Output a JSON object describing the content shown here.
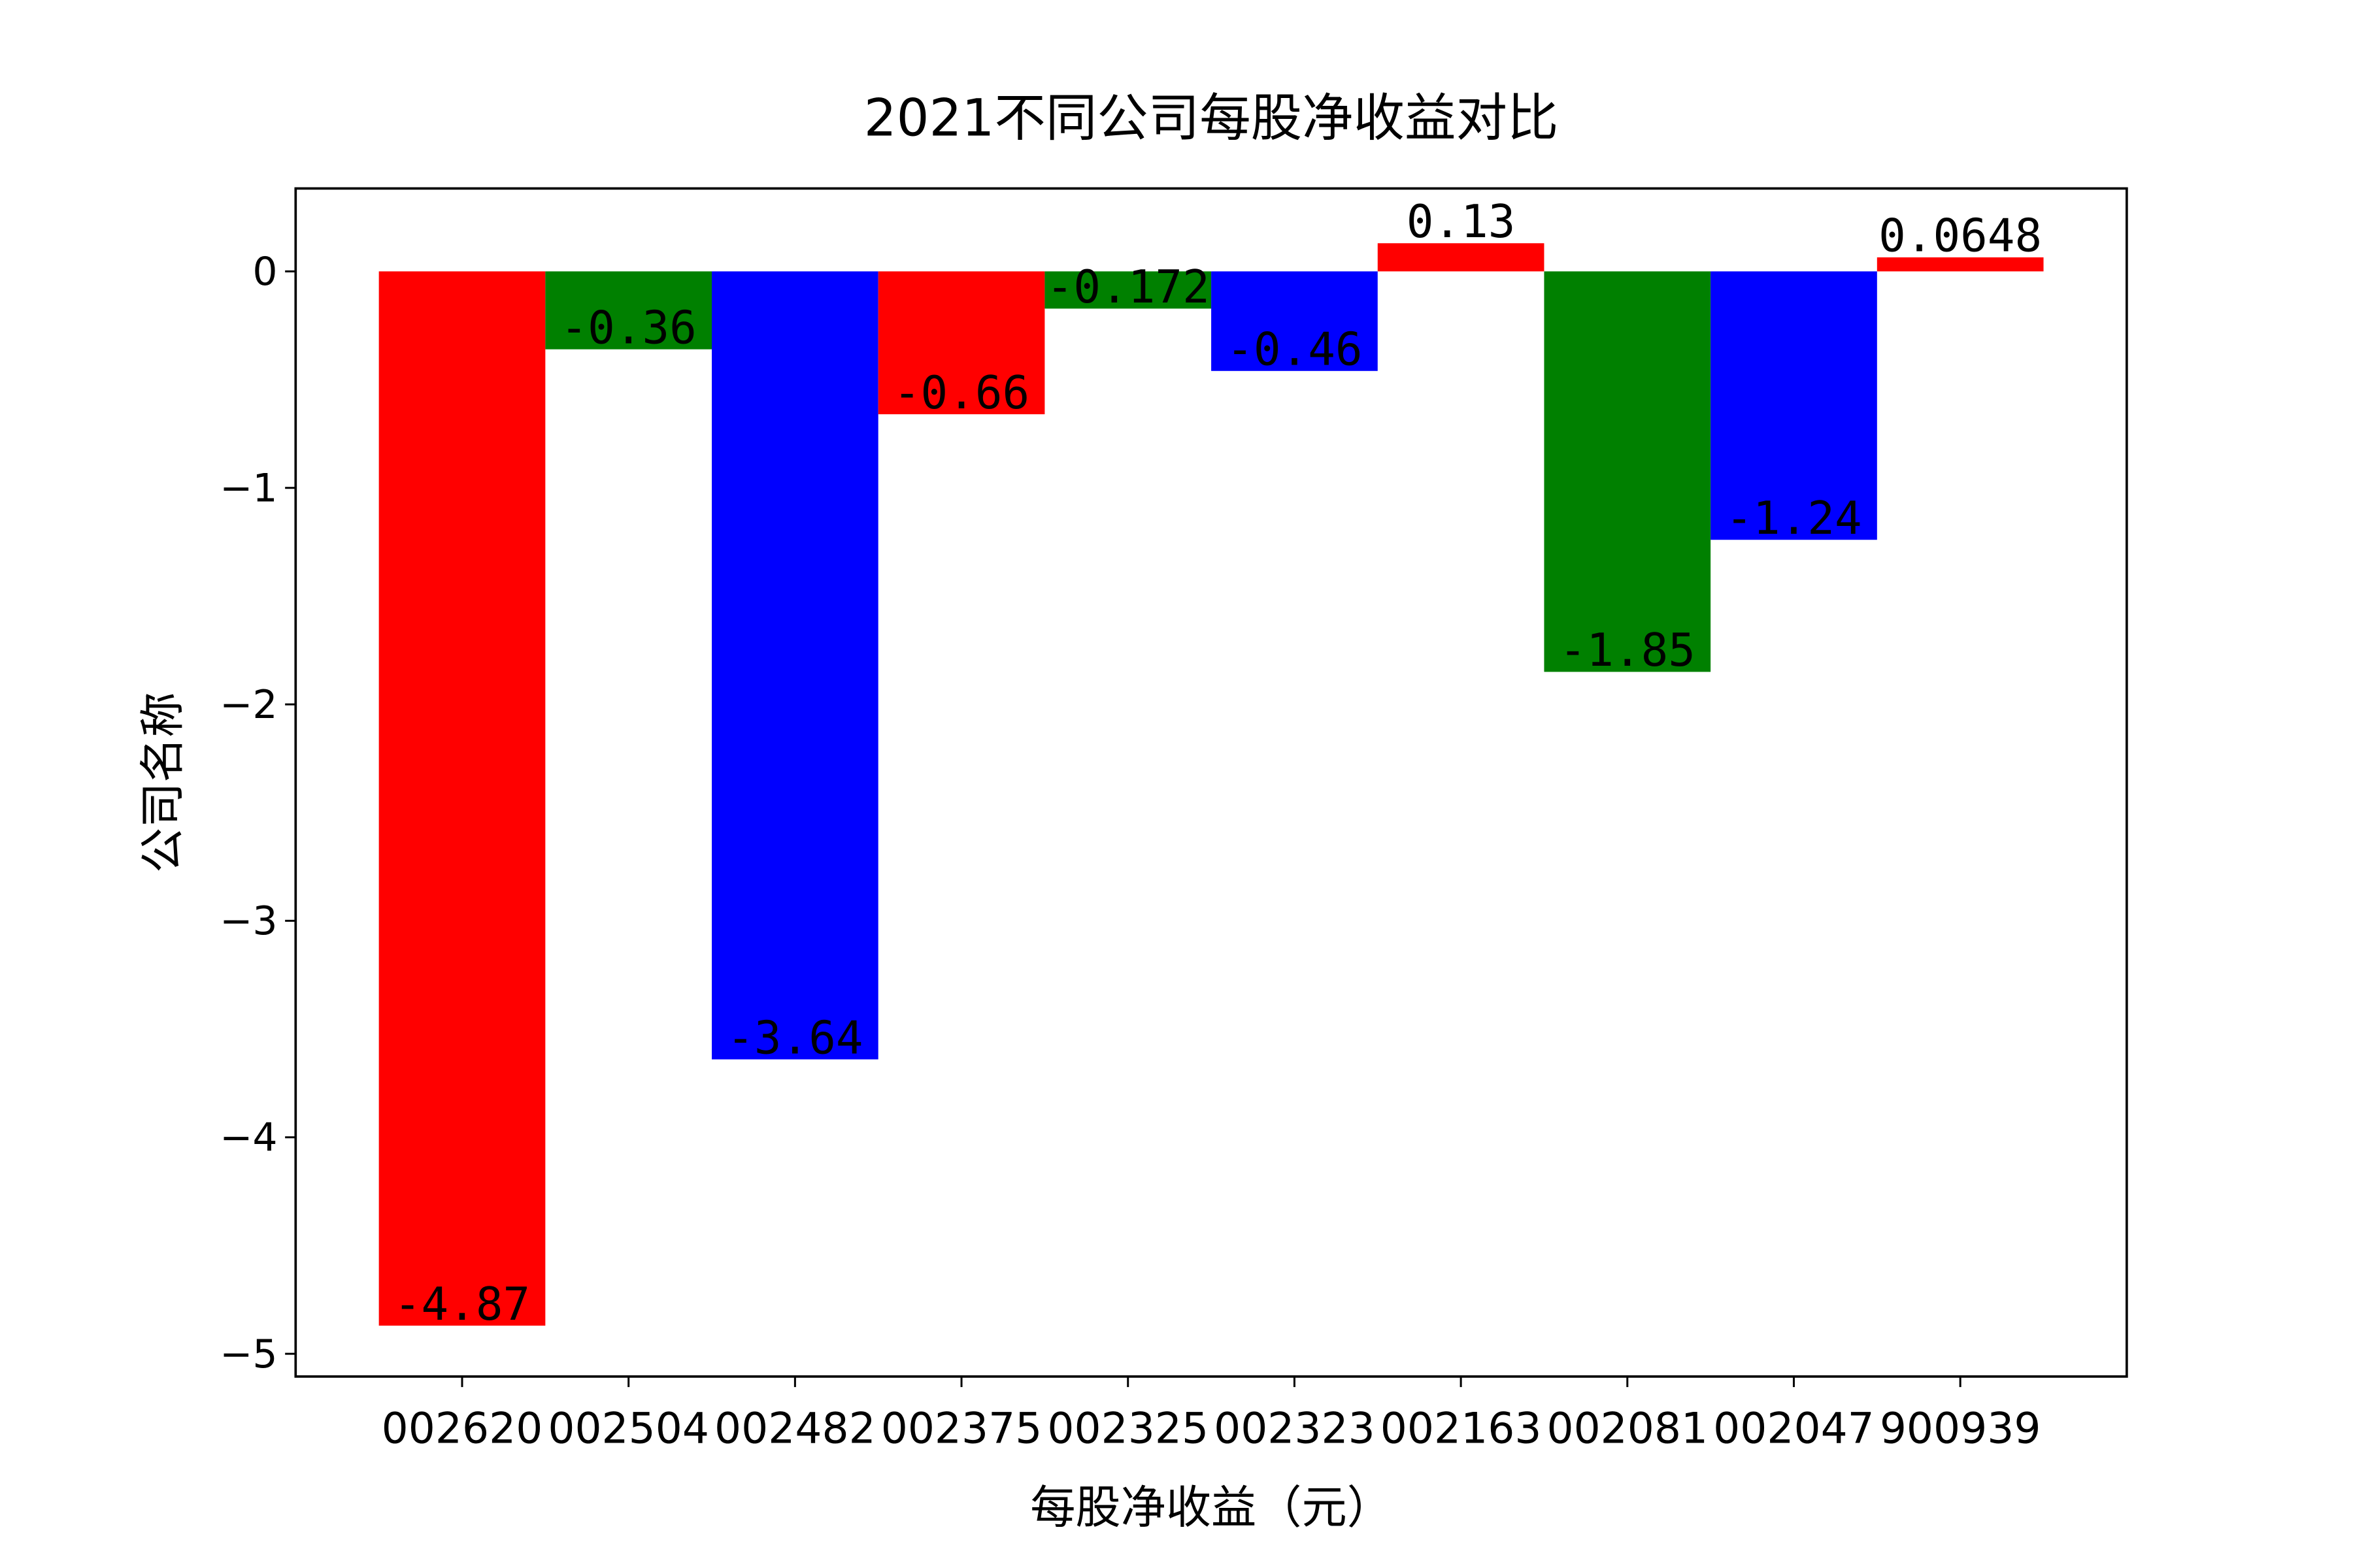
{
  "chart_data": {
    "type": "bar",
    "title": "2021不同公司每股净收益对比",
    "xlabel": "每股净收益（元）",
    "ylabel": "公司名称",
    "categories": [
      "002620",
      "002504",
      "002482",
      "002375",
      "002325",
      "002323",
      "002163",
      "002081",
      "002047",
      "900939"
    ],
    "values": [
      -4.87,
      -0.36,
      -3.64,
      -0.66,
      -0.172,
      -0.46,
      0.13,
      -1.85,
      -1.24,
      0.0648
    ],
    "colors": [
      "#ff0000",
      "#008000",
      "#0000ff",
      "#ff0000",
      "#008000",
      "#0000ff",
      "#ff0000",
      "#008000",
      "#0000ff",
      "#ff0000"
    ],
    "ylim": [
      -5.105,
      0.383
    ],
    "yticks": [
      {
        "value": -5,
        "label": "−5"
      },
      {
        "value": -4,
        "label": "−4"
      },
      {
        "value": -3,
        "label": "−3"
      },
      {
        "value": -2,
        "label": "−2"
      },
      {
        "value": -1,
        "label": "−1"
      },
      0
    ],
    "grid": false
  }
}
